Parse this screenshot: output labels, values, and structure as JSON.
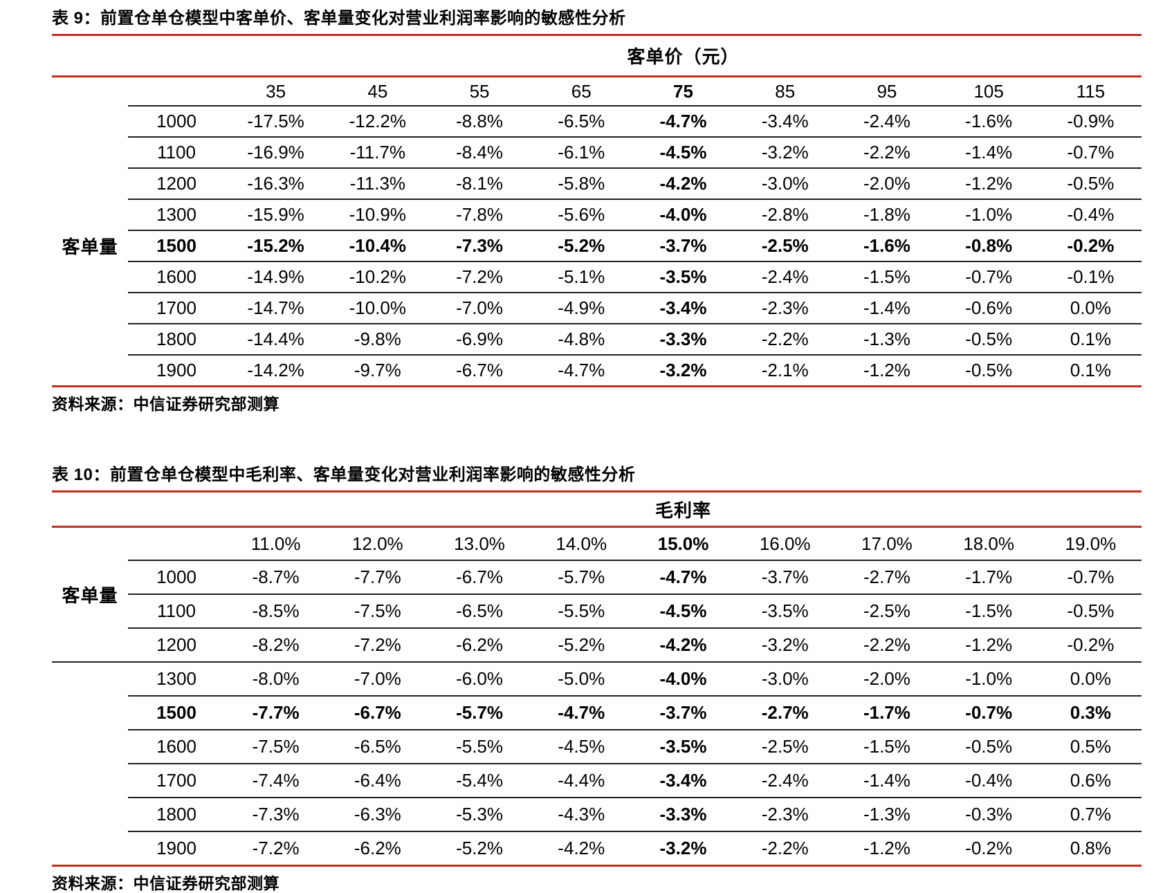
{
  "accent_color": "#C62A21",
  "line_color": "#1f1f1f",
  "tables": [
    {
      "title": "表 9：前置仓单仓模型中客单价、客单量变化对营业利润率影响的敏感性分析",
      "col_group_label": "客单价（元）",
      "row_group": {
        "label": "客单量",
        "span_start": "first_data_row",
        "span_rows": 9
      },
      "columns": [
        "35",
        "45",
        "55",
        "65",
        "75",
        "85",
        "95",
        "105",
        "115"
      ],
      "highlight_col_index": 4,
      "highlight_row_index": 4,
      "rows": [
        {
          "label": "1000",
          "values": [
            "-17.5%",
            "-12.2%",
            "-8.8%",
            "-6.5%",
            "-4.7%",
            "-3.4%",
            "-2.4%",
            "-1.6%",
            "-0.9%"
          ]
        },
        {
          "label": "1100",
          "values": [
            "-16.9%",
            "-11.7%",
            "-8.4%",
            "-6.1%",
            "-4.5%",
            "-3.2%",
            "-2.2%",
            "-1.4%",
            "-0.7%"
          ]
        },
        {
          "label": "1200",
          "values": [
            "-16.3%",
            "-11.3%",
            "-8.1%",
            "-5.8%",
            "-4.2%",
            "-3.0%",
            "-2.0%",
            "-1.2%",
            "-0.5%"
          ]
        },
        {
          "label": "1300",
          "values": [
            "-15.9%",
            "-10.9%",
            "-7.8%",
            "-5.6%",
            "-4.0%",
            "-2.8%",
            "-1.8%",
            "-1.0%",
            "-0.4%"
          ]
        },
        {
          "label": "1500",
          "values": [
            "-15.2%",
            "-10.4%",
            "-7.3%",
            "-5.2%",
            "-3.7%",
            "-2.5%",
            "-1.6%",
            "-0.8%",
            "-0.2%"
          ]
        },
        {
          "label": "1600",
          "values": [
            "-14.9%",
            "-10.2%",
            "-7.2%",
            "-5.1%",
            "-3.5%",
            "-2.4%",
            "-1.5%",
            "-0.7%",
            "-0.1%"
          ]
        },
        {
          "label": "1700",
          "values": [
            "-14.7%",
            "-10.0%",
            "-7.0%",
            "-4.9%",
            "-3.4%",
            "-2.3%",
            "-1.4%",
            "-0.6%",
            "0.0%"
          ]
        },
        {
          "label": "1800",
          "values": [
            "-14.4%",
            "-9.8%",
            "-6.9%",
            "-4.8%",
            "-3.3%",
            "-2.2%",
            "-1.3%",
            "-0.5%",
            "0.1%"
          ]
        },
        {
          "label": "1900",
          "values": [
            "-14.2%",
            "-9.7%",
            "-6.7%",
            "-4.7%",
            "-3.2%",
            "-2.1%",
            "-1.2%",
            "-0.5%",
            "0.1%"
          ]
        }
      ],
      "source": "资料来源：中信证券研究部测算"
    },
    {
      "title": "表 10：前置仓单仓模型中毛利率、客单量变化对营业利润率影响的敏感性分析",
      "col_group_label": "毛利率",
      "row_group": {
        "label": "客单量",
        "span_start": "column_header_row",
        "span_rows": 4
      },
      "columns": [
        "11.0%",
        "12.0%",
        "13.0%",
        "14.0%",
        "15.0%",
        "16.0%",
        "17.0%",
        "18.0%",
        "19.0%"
      ],
      "highlight_col_index": 4,
      "highlight_row_index": 4,
      "rows": [
        {
          "label": "1000",
          "values": [
            "-8.7%",
            "-7.7%",
            "-6.7%",
            "-5.7%",
            "-4.7%",
            "-3.7%",
            "-2.7%",
            "-1.7%",
            "-0.7%"
          ]
        },
        {
          "label": "1100",
          "values": [
            "-8.5%",
            "-7.5%",
            "-6.5%",
            "-5.5%",
            "-4.5%",
            "-3.5%",
            "-2.5%",
            "-1.5%",
            "-0.5%"
          ]
        },
        {
          "label": "1200",
          "values": [
            "-8.2%",
            "-7.2%",
            "-6.2%",
            "-5.2%",
            "-4.2%",
            "-3.2%",
            "-2.2%",
            "-1.2%",
            "-0.2%"
          ]
        },
        {
          "label": "1300",
          "values": [
            "-8.0%",
            "-7.0%",
            "-6.0%",
            "-5.0%",
            "-4.0%",
            "-3.0%",
            "-2.0%",
            "-1.0%",
            "0.0%"
          ]
        },
        {
          "label": "1500",
          "values": [
            "-7.7%",
            "-6.7%",
            "-5.7%",
            "-4.7%",
            "-3.7%",
            "-2.7%",
            "-1.7%",
            "-0.7%",
            "0.3%"
          ]
        },
        {
          "label": "1600",
          "values": [
            "-7.5%",
            "-6.5%",
            "-5.5%",
            "-4.5%",
            "-3.5%",
            "-2.5%",
            "-1.5%",
            "-0.5%",
            "0.5%"
          ]
        },
        {
          "label": "1700",
          "values": [
            "-7.4%",
            "-6.4%",
            "-5.4%",
            "-4.4%",
            "-3.4%",
            "-2.4%",
            "-1.4%",
            "-0.4%",
            "0.6%"
          ]
        },
        {
          "label": "1800",
          "values": [
            "-7.3%",
            "-6.3%",
            "-5.3%",
            "-4.3%",
            "-3.3%",
            "-2.3%",
            "-1.3%",
            "-0.3%",
            "0.7%"
          ]
        },
        {
          "label": "1900",
          "values": [
            "-7.2%",
            "-6.2%",
            "-5.2%",
            "-4.2%",
            "-3.2%",
            "-2.2%",
            "-1.2%",
            "-0.2%",
            "0.8%"
          ]
        }
      ],
      "source": "资料来源：中信证券研究部测算"
    }
  ]
}
